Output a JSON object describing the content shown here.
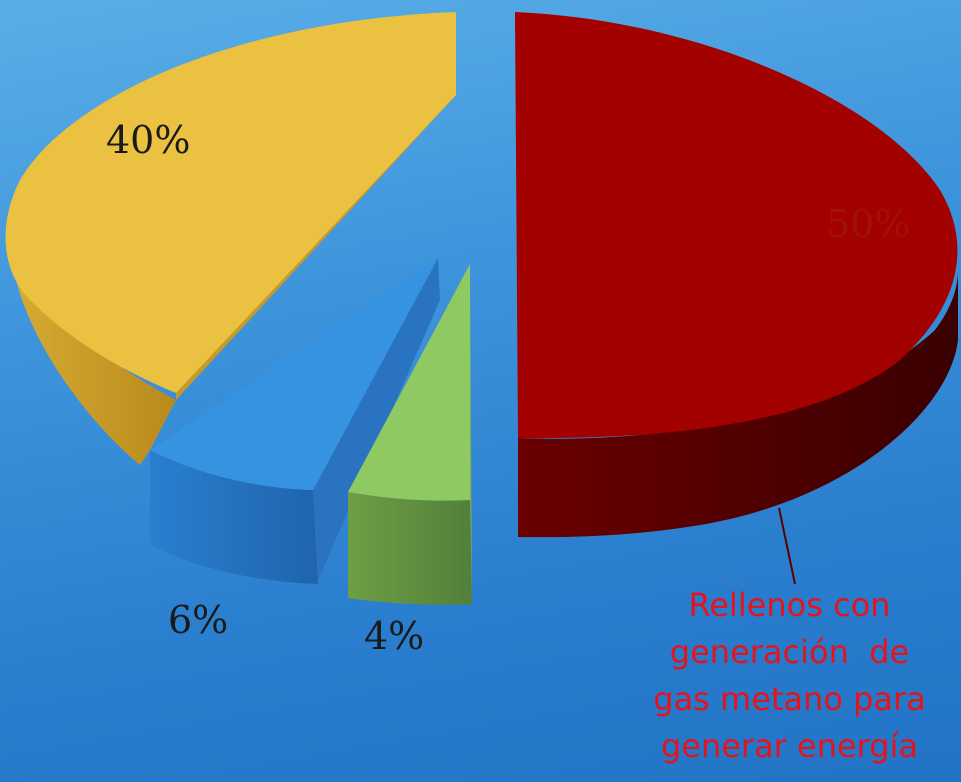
{
  "chart_data": {
    "type": "pie",
    "style": "3d-exploded",
    "slices": [
      {
        "label": "50%",
        "value": 50,
        "color": "#a00000",
        "side_color": "#560000"
      },
      {
        "label": "40%",
        "value": 40,
        "color": "#eac040",
        "side_color": "#c89822"
      },
      {
        "label": "6%",
        "value": 6,
        "color": "#2e8fe0",
        "side_color": "#2168b4"
      },
      {
        "label": "4%",
        "value": 4,
        "color": "#8ec761",
        "side_color": "#5f8f3a"
      }
    ],
    "annotation": {
      "text": "Rellenos con generación  de gas metano para generar energía",
      "lines": [
        "Rellenos con",
        "generación  de",
        "gas metano para",
        "generar energía"
      ],
      "color": "#e4141c",
      "target_slice": "50%"
    }
  }
}
